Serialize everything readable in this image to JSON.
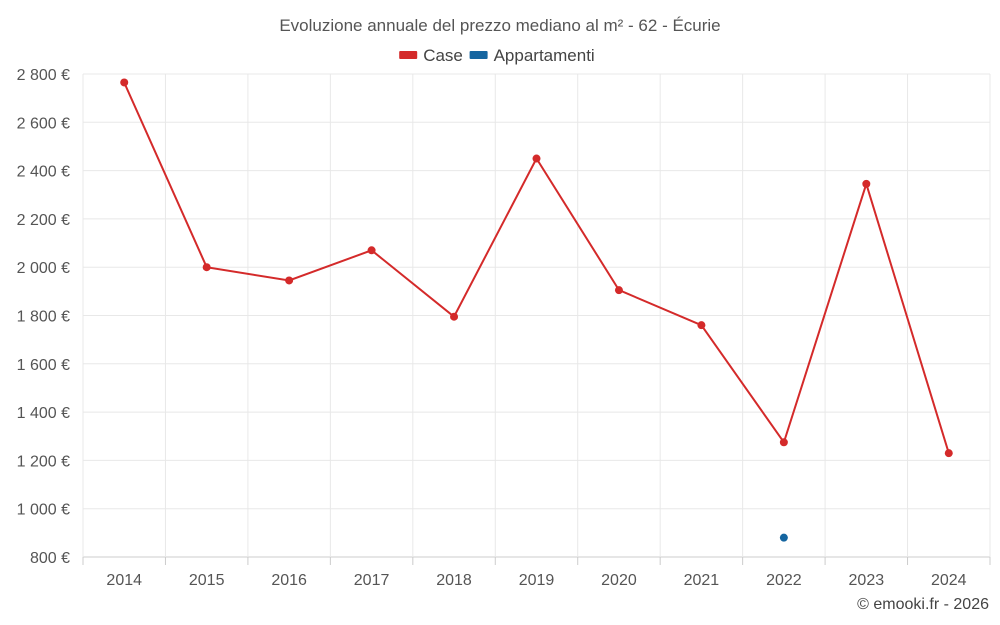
{
  "chart_data": {
    "type": "line",
    "title": "Evoluzione annuale del prezzo mediano al m² - 62 - Écurie",
    "categories": [
      "2014",
      "2015",
      "2016",
      "2017",
      "2018",
      "2019",
      "2020",
      "2021",
      "2022",
      "2023",
      "2024"
    ],
    "series": [
      {
        "name": "Case",
        "color": "#d42a2a",
        "values": [
          2765,
          2000,
          1945,
          2070,
          1795,
          2450,
          1905,
          1760,
          1275,
          2345,
          1230
        ]
      },
      {
        "name": "Appartamenti",
        "color": "#1565a0",
        "values": [
          null,
          null,
          null,
          null,
          null,
          null,
          null,
          null,
          880,
          null,
          null
        ]
      }
    ],
    "ylim": [
      800,
      2800
    ],
    "yticks": [
      800,
      1000,
      1200,
      1400,
      1600,
      1800,
      2000,
      2200,
      2400,
      2600,
      2800
    ],
    "ytick_labels": [
      "800 €",
      "1 000 €",
      "1 200 €",
      "1 400 €",
      "1 600 €",
      "1 800 €",
      "2 000 €",
      "2 200 €",
      "2 400 €",
      "2 600 €",
      "2 800 €"
    ],
    "xlabel": "",
    "ylabel": "",
    "grid": true,
    "legend_position": "top-center"
  },
  "credit": "© emooki.fr - 2026"
}
